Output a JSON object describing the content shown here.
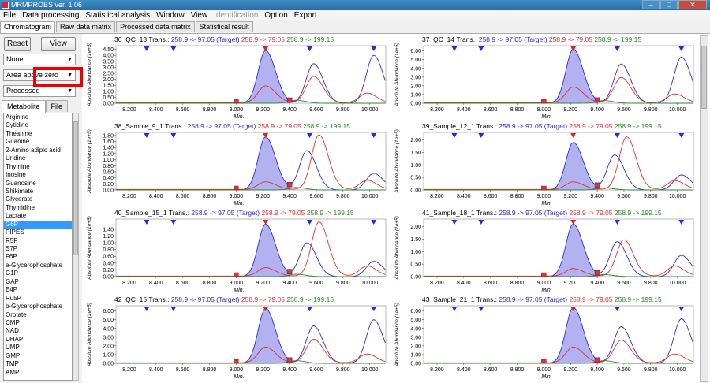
{
  "window": {
    "title": "MRMPROBS ver. 1.06"
  },
  "menu": [
    "File",
    "Data processing",
    "Statistical analysis",
    "Window",
    "View",
    "Identification",
    "Option",
    "Export"
  ],
  "menu_disabled": [
    "Identification"
  ],
  "tabs": [
    "Chromatogram",
    "Raw data matrix",
    "Processed data matrix",
    "Statistical result"
  ],
  "left": {
    "reset_label": "Reset",
    "view_label": "View",
    "select1": "None",
    "select2": "Area above zero",
    "select3": "Processed",
    "subtabs": [
      "Metabolite",
      "File"
    ],
    "metabolites": [
      "Arginine",
      "Cytidine",
      "Theanine",
      "Guanine",
      "2-Amino adipic acid",
      "Uridine",
      "Thymine",
      "Inosine",
      "Guanosine",
      "Shikimate",
      "Glycerate",
      "Thymidine",
      "Lactate",
      "G6P",
      "PIPES",
      "R5P",
      "S7P",
      "F6P",
      "a-Glycerophosphate",
      "G1P",
      "GAP",
      "E4P",
      "Ru5P",
      "b-Glycerophosphate",
      "Orotate",
      "CMP",
      "NAD",
      "DHAP",
      "UMP",
      "GMP",
      "TMP",
      "AMP"
    ],
    "selected": "G6P"
  },
  "chart_common": {
    "trans_label": "Trans.:",
    "transitions": [
      "258.9 -> 97.05 (Target)",
      "258.9 -> 79.05",
      "258.9 -> 199.15"
    ],
    "ylabel": "Absolute Abundance (1e+5)",
    "xlabel": "Min.",
    "xticks": [
      "8.200",
      "8.400",
      "8.600",
      "8.800",
      "9.000",
      "9.200",
      "9.400",
      "9.600",
      "9.800",
      "10.000"
    ]
  },
  "chart_data": [
    {
      "type": "line",
      "title": "36_QC_13",
      "xlim": [
        8.1,
        10.12
      ],
      "ylim": [
        0,
        4.8
      ],
      "yticks": [
        "0.00",
        "0.50",
        "1.00",
        "1.50",
        "2.00",
        "2.50",
        "3.00",
        "3.50",
        "4.00",
        "4.50"
      ],
      "series": [
        {
          "name": "258.9 -> 97.05 (Target)",
          "peaks": [
            [
              9.22,
              4.4
            ],
            [
              9.58,
              3.3
            ],
            [
              10.03,
              4.0
            ]
          ]
        },
        {
          "name": "258.9 -> 79.05",
          "peaks": [
            [
              9.22,
              1.4
            ],
            [
              9.58,
              2.2
            ],
            [
              9.98,
              0.8
            ]
          ]
        },
        {
          "name": "258.9 -> 199.15",
          "peaks": [
            [
              9.45,
              0.25
            ]
          ]
        }
      ],
      "range": [
        9.0,
        9.4
      ]
    },
    {
      "type": "line",
      "title": "37_QC_14",
      "xlim": [
        8.1,
        10.12
      ],
      "ylim": [
        0,
        6.6
      ],
      "yticks": [
        "0.00",
        "1.00",
        "2.00",
        "3.00",
        "4.00",
        "5.00",
        "6.00"
      ],
      "series": [
        {
          "name": "258.9 -> 97.05 (Target)",
          "peaks": [
            [
              9.22,
              6.2
            ],
            [
              9.58,
              4.5
            ],
            [
              10.03,
              5.3
            ]
          ]
        },
        {
          "name": "258.9 -> 79.05",
          "peaks": [
            [
              9.22,
              1.8
            ],
            [
              9.58,
              2.9
            ],
            [
              9.98,
              1.0
            ]
          ]
        },
        {
          "name": "258.9 -> 199.15",
          "peaks": [
            [
              9.45,
              0.3
            ]
          ]
        }
      ],
      "range": [
        9.0,
        9.4
      ]
    },
    {
      "type": "line",
      "title": "38_Sample_9_1",
      "xlim": [
        8.1,
        10.12
      ],
      "ylim": [
        0,
        1.9
      ],
      "yticks": [
        "0.00",
        "0.20",
        "0.40",
        "0.60",
        "0.80",
        "1.00",
        "1.20",
        "1.40",
        "1.60",
        "1.80"
      ],
      "series": [
        {
          "name": "258.9 -> 97.05 (Target)",
          "peaks": [
            [
              9.22,
              1.75
            ],
            [
              9.53,
              1.3
            ],
            [
              10.03,
              0.55
            ]
          ]
        },
        {
          "name": "258.9 -> 79.05",
          "peaks": [
            [
              9.22,
              0.25
            ],
            [
              9.62,
              1.8
            ],
            [
              9.98,
              0.3
            ]
          ]
        },
        {
          "name": "258.9 -> 199.15",
          "peaks": [
            [
              9.45,
              0.08
            ]
          ]
        }
      ],
      "range": [
        9.0,
        9.4
      ]
    },
    {
      "type": "line",
      "title": "39_Sample_12_1",
      "xlim": [
        8.1,
        10.12
      ],
      "ylim": [
        0,
        2.3
      ],
      "yticks": [
        "0.00",
        "0.50",
        "1.00",
        "1.50",
        "2.00"
      ],
      "series": [
        {
          "name": "258.9 -> 97.05 (Target)",
          "peaks": [
            [
              9.22,
              1.9
            ],
            [
              9.53,
              1.4
            ],
            [
              10.03,
              0.6
            ]
          ]
        },
        {
          "name": "258.9 -> 79.05",
          "peaks": [
            [
              9.22,
              0.3
            ],
            [
              9.62,
              2.1
            ],
            [
              9.98,
              0.35
            ]
          ]
        },
        {
          "name": "258.9 -> 199.15",
          "peaks": [
            [
              9.45,
              0.08
            ]
          ]
        }
      ],
      "range": [
        9.0,
        9.4
      ]
    },
    {
      "type": "line",
      "title": "40_Sample_15_1",
      "xlim": [
        8.1,
        10.12
      ],
      "ylim": [
        0,
        1.7
      ],
      "yticks": [
        "0.00",
        "0.20",
        "0.40",
        "0.60",
        "0.80",
        "1.00",
        "1.20",
        "1.40"
      ],
      "series": [
        {
          "name": "258.9 -> 97.05 (Target)",
          "peaks": [
            [
              9.22,
              1.55
            ],
            [
              9.53,
              1.0
            ],
            [
              10.03,
              0.45
            ]
          ]
        },
        {
          "name": "258.9 -> 79.05",
          "peaks": [
            [
              9.22,
              0.25
            ],
            [
              9.62,
              1.6
            ],
            [
              9.98,
              0.3
            ]
          ]
        },
        {
          "name": "258.9 -> 199.15",
          "peaks": [
            [
              9.45,
              0.07
            ]
          ]
        }
      ],
      "range": [
        9.0,
        9.4
      ]
    },
    {
      "type": "line",
      "title": "41_Sample_18_1",
      "xlim": [
        8.1,
        10.12
      ],
      "ylim": [
        0,
        2.3
      ],
      "yticks": [
        "0.00",
        "0.50",
        "1.00",
        "1.50",
        "2.00"
      ],
      "series": [
        {
          "name": "258.9 -> 97.05 (Target)",
          "peaks": [
            [
              9.22,
              2.1
            ],
            [
              9.55,
              1.4
            ],
            [
              10.03,
              0.85
            ]
          ]
        },
        {
          "name": "258.9 -> 79.05",
          "peaks": [
            [
              9.22,
              0.3
            ],
            [
              9.6,
              1.45
            ],
            [
              9.98,
              0.4
            ]
          ]
        },
        {
          "name": "258.9 -> 199.15",
          "peaks": [
            [
              9.45,
              0.08
            ]
          ]
        }
      ],
      "range": [
        9.0,
        9.4
      ]
    },
    {
      "type": "line",
      "title": "42_QC_15",
      "xlim": [
        8.1,
        10.12
      ],
      "ylim": [
        0,
        6.6
      ],
      "yticks": [
        "0.00",
        "1.00",
        "2.00",
        "3.00",
        "4.00",
        "5.00",
        "6.00"
      ],
      "series": [
        {
          "name": "258.9 -> 97.05 (Target)",
          "peaks": [
            [
              9.22,
              6.3
            ],
            [
              9.58,
              4.3
            ],
            [
              10.03,
              5.0
            ]
          ]
        },
        {
          "name": "258.9 -> 79.05",
          "peaks": [
            [
              9.22,
              1.8
            ],
            [
              9.58,
              2.7
            ],
            [
              9.98,
              1.0
            ]
          ]
        },
        {
          "name": "258.9 -> 199.15",
          "peaks": [
            [
              9.45,
              0.3
            ]
          ]
        }
      ],
      "range": [
        9.0,
        9.4
      ]
    },
    {
      "type": "line",
      "title": "43_Sample_21_1",
      "xlim": [
        8.1,
        10.12
      ],
      "ylim": [
        0,
        6.6
      ],
      "yticks": [
        "0.00",
        "1.00",
        "2.00",
        "3.00",
        "4.00",
        "5.00",
        "6.00"
      ],
      "series": [
        {
          "name": "258.9 -> 97.05 (Target)",
          "peaks": [
            [
              9.22,
              6.4
            ],
            [
              9.58,
              4.2
            ],
            [
              10.03,
              5.1
            ]
          ]
        },
        {
          "name": "258.9 -> 79.05",
          "peaks": [
            [
              9.22,
              1.8
            ],
            [
              9.58,
              2.6
            ],
            [
              9.98,
              1.0
            ]
          ]
        },
        {
          "name": "258.9 -> 199.15",
          "peaks": [
            [
              9.45,
              0.3
            ]
          ]
        }
      ],
      "range": [
        9.0,
        9.4
      ]
    }
  ],
  "colors": {
    "target": "#2b2bd6",
    "t2": "#e03030",
    "t3": "#2a8a2a",
    "fill": "#7373e6"
  }
}
